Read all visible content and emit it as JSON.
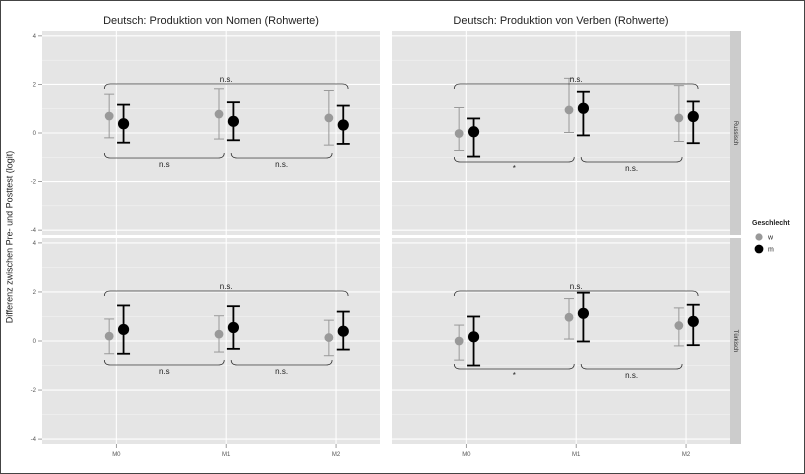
{
  "chart_data": {
    "type": "scatter",
    "subtype": "point-errorbar faceted",
    "ylabel": "Differenz zwischen Pre- und Posttest (logit)",
    "x_categories": [
      "M0",
      "M1",
      "M2"
    ],
    "y_ticks": [
      "-4",
      "-2",
      "0",
      "2",
      "4"
    ],
    "ylim": [
      -4.2,
      4.2
    ],
    "grid": true,
    "legend": {
      "title": "Geschlecht",
      "placement": "right",
      "items": [
        {
          "label": "w",
          "color": "#999999"
        },
        {
          "label": "m",
          "color": "#000000"
        }
      ]
    },
    "facet_rows": [
      "Russisch",
      "Türkisch"
    ],
    "facet_cols": [
      "Deutsch: Produktion von Nomen (Rohwerte)",
      "Deutsch: Produktion von Verben (Rohwerte)"
    ],
    "panels": [
      {
        "col": 0,
        "row": 0,
        "series": [
          {
            "name": "w",
            "mean": [
              0.7,
              0.78,
              0.62
            ],
            "lower": [
              -0.2,
              -0.25,
              -0.5
            ],
            "upper": [
              1.6,
              1.82,
              1.75
            ]
          },
          {
            "name": "m",
            "mean": [
              0.38,
              0.48,
              0.33
            ],
            "lower": [
              -0.4,
              -0.3,
              -0.45
            ],
            "upper": [
              1.17,
              1.27,
              1.13
            ]
          }
        ],
        "brackets": [
          {
            "from": 0,
            "to": 2,
            "position": "above",
            "label": "n.s."
          },
          {
            "from": 0,
            "to": 1,
            "position": "below",
            "label": "n.s"
          },
          {
            "from": 1,
            "to": 2,
            "position": "below",
            "label": "n.s."
          }
        ]
      },
      {
        "col": 1,
        "row": 0,
        "series": [
          {
            "name": "w",
            "mean": [
              -0.02,
              0.95,
              0.62
            ],
            "lower": [
              -0.72,
              0.02,
              -0.35
            ],
            "upper": [
              1.05,
              2.25,
              1.95
            ]
          },
          {
            "name": "m",
            "mean": [
              0.05,
              1.02,
              0.68
            ],
            "lower": [
              -0.97,
              -0.1,
              -0.42
            ],
            "upper": [
              0.6,
              1.7,
              1.3
            ]
          }
        ],
        "brackets": [
          {
            "from": 0,
            "to": 2,
            "position": "above",
            "label": "n.s."
          },
          {
            "from": 0,
            "to": 1,
            "position": "below",
            "label": "*"
          },
          {
            "from": 1,
            "to": 2,
            "position": "below",
            "label": "n.s."
          }
        ]
      },
      {
        "col": 0,
        "row": 1,
        "series": [
          {
            "name": "w",
            "mean": [
              0.2,
              0.28,
              0.14
            ],
            "lower": [
              -0.52,
              -0.45,
              -0.6
            ],
            "upper": [
              0.9,
              1.03,
              0.85
            ]
          },
          {
            "name": "m",
            "mean": [
              0.47,
              0.55,
              0.4
            ],
            "lower": [
              -0.52,
              -0.32,
              -0.35
            ],
            "upper": [
              1.45,
              1.42,
              1.2
            ]
          }
        ],
        "brackets": [
          {
            "from": 0,
            "to": 2,
            "position": "above",
            "label": "n.s."
          },
          {
            "from": 0,
            "to": 1,
            "position": "below",
            "label": "n.s"
          },
          {
            "from": 1,
            "to": 2,
            "position": "below",
            "label": "n.s."
          }
        ]
      },
      {
        "col": 1,
        "row": 1,
        "series": [
          {
            "name": "w",
            "mean": [
              0.0,
              0.97,
              0.63
            ],
            "lower": [
              -0.78,
              0.08,
              -0.2
            ],
            "upper": [
              0.65,
              1.73,
              1.35
            ]
          },
          {
            "name": "m",
            "mean": [
              0.17,
              1.13,
              0.8
            ],
            "lower": [
              -1.0,
              -0.02,
              -0.17
            ],
            "upper": [
              1.0,
              1.97,
              1.48
            ]
          }
        ],
        "brackets": [
          {
            "from": 0,
            "to": 2,
            "position": "above",
            "label": "n.s."
          },
          {
            "from": 0,
            "to": 1,
            "position": "below",
            "label": "*"
          },
          {
            "from": 1,
            "to": 2,
            "position": "below",
            "label": "n.s."
          }
        ]
      }
    ]
  }
}
